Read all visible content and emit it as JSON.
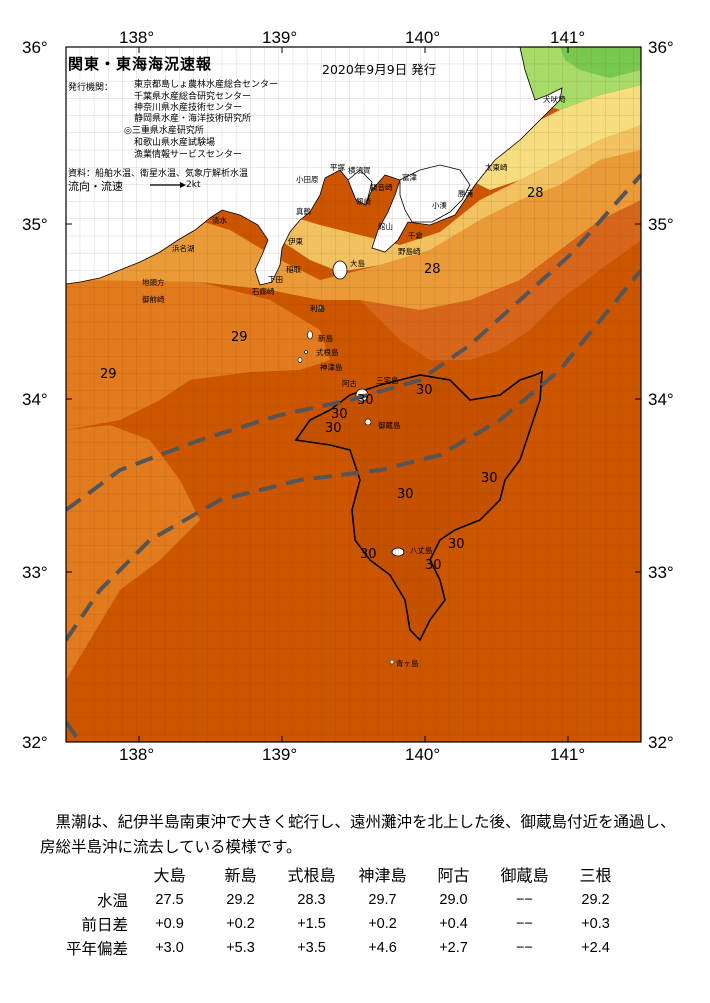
{
  "map": {
    "title": "関東・東海海況速報",
    "issue_date": "2020年9月9日 発行",
    "orgs_label": "発行機関：",
    "orgs": [
      "東京都島しょ農林水産総合センター",
      "千葉県水産総合研究センター",
      "神奈川県水産技術センター",
      "静岡県水産・海洋技術研究所",
      "◎三重県水産研究所",
      "和歌山県水産試験場",
      "漁業情報サービスセンター"
    ],
    "sources": "資料：船舶水温、衛星水温、気象庁解析水温",
    "legend_flow": "流向・流速",
    "legend_kt": "2kt",
    "lon_labels": [
      "138°",
      "139°",
      "140°",
      "141°"
    ],
    "lat_labels": [
      "36°",
      "35°",
      "34°",
      "33°",
      "32°"
    ],
    "places": [
      {
        "name": "犬吠埼"
      },
      {
        "name": "太東崎"
      },
      {
        "name": "勝浦"
      },
      {
        "name": "小湊"
      },
      {
        "name": "千倉"
      },
      {
        "name": "野島崎"
      },
      {
        "name": "館山"
      },
      {
        "name": "富津"
      },
      {
        "name": "観音崎"
      },
      {
        "name": "剱崎"
      },
      {
        "name": "横須賀"
      },
      {
        "name": "平塚"
      },
      {
        "name": "小田原"
      },
      {
        "name": "真鶴"
      },
      {
        "name": "伊東"
      },
      {
        "name": "稲取"
      },
      {
        "name": "下田"
      },
      {
        "name": "石廊崎"
      },
      {
        "name": "清水"
      },
      {
        "name": "浜名湖"
      },
      {
        "name": "御前崎"
      },
      {
        "name": "大島"
      },
      {
        "name": "利島"
      },
      {
        "name": "新島"
      },
      {
        "name": "式根島"
      },
      {
        "name": "神津島"
      },
      {
        "name": "三宅島"
      },
      {
        "name": "御蔵島"
      },
      {
        "name": "八丈島"
      },
      {
        "name": "青ヶ島"
      },
      {
        "name": "地頭方"
      },
      {
        "name": "阿古"
      }
    ],
    "contour_labels": [
      {
        "text": "28"
      },
      {
        "text": "28"
      },
      {
        "text": "29"
      },
      {
        "text": "29"
      },
      {
        "text": "30"
      },
      {
        "text": "30"
      },
      {
        "text": "30"
      },
      {
        "text": "30"
      },
      {
        "text": "30"
      },
      {
        "text": "30"
      },
      {
        "text": "30"
      },
      {
        "text": "30"
      },
      {
        "text": "30"
      }
    ],
    "colors": {
      "warm_30": "#cc5500",
      "warm_29": "#e27a1e",
      "warm_28": "#eb9a38",
      "cool_27": "#f2c160",
      "cool_26": "#f5dd80",
      "cool_25": "#c8e070",
      "cool_24": "#8fd460",
      "land": "#ffffff",
      "kuroshio_path": "#555555"
    }
  },
  "summary": "　黒潮は、紀伊半島南東沖で大きく蛇行し、遠州灘沖を北上した後、御蔵島付近を通過し、房総半島沖に流去している模様です。",
  "table": {
    "columns": [
      "大島",
      "新島",
      "式根島",
      "神津島",
      "阿古",
      "御蔵島",
      "三根"
    ],
    "rows": [
      {
        "label": "水温",
        "values": [
          "27.5",
          "29.2",
          "28.3",
          "29.7",
          "29.0",
          "−−",
          "29.2"
        ]
      },
      {
        "label": "前日差",
        "values": [
          "+0.9",
          "+0.2",
          "+1.5",
          "+0.2",
          "+0.4",
          "−−",
          "+0.3"
        ]
      },
      {
        "label": "平年偏差",
        "values": [
          "+3.0",
          "+5.3",
          "+3.5",
          "+4.6",
          "+2.7",
          "−−",
          "+2.4"
        ]
      }
    ]
  }
}
